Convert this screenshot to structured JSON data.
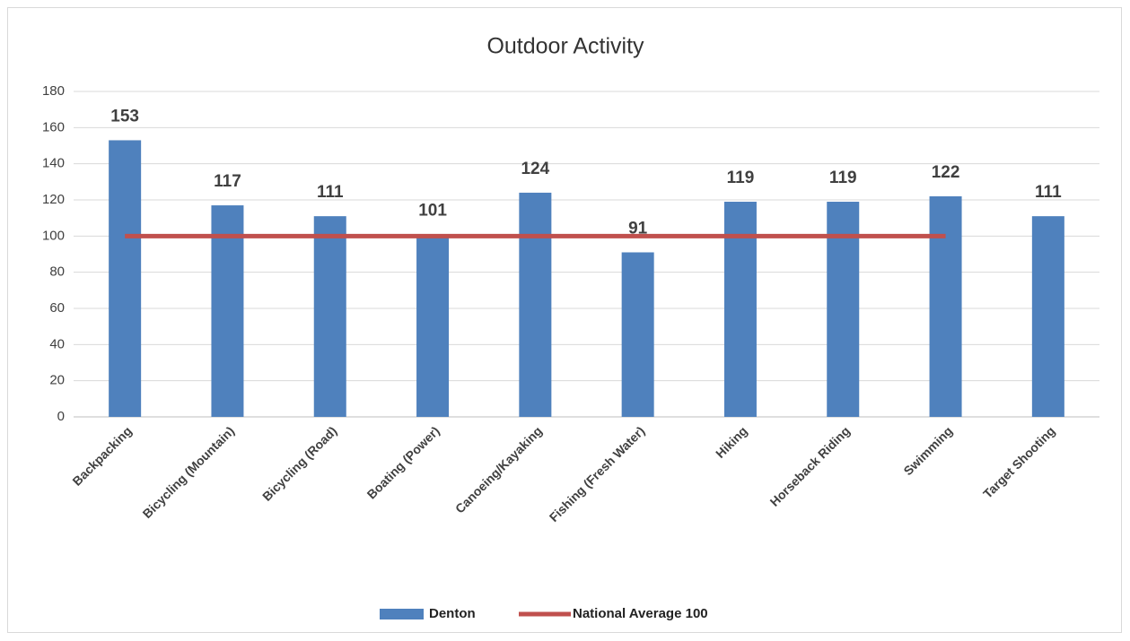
{
  "chart_data": {
    "type": "bar",
    "title": "Outdoor Activity",
    "categories": [
      "Backpacking",
      "Bicycling (Mountain)",
      "Bicycling (Road)",
      "Boating (Power)",
      "Canoeing/Kayaking",
      "Fishing (Fresh Water)",
      "Hiking",
      "Horseback Riding",
      "Swimming",
      "Target Shooting"
    ],
    "series": [
      {
        "name": "Denton",
        "type": "bar",
        "color": "#4f81bd",
        "values": [
          153,
          117,
          111,
          101,
          124,
          91,
          119,
          119,
          122,
          111
        ]
      },
      {
        "name": "National Average 100",
        "type": "line",
        "color": "#c0504d",
        "values": [
          100,
          100,
          100,
          100,
          100,
          100,
          100,
          100,
          100,
          null
        ]
      }
    ],
    "ylim": [
      0,
      180
    ],
    "yticks": [
      0,
      20,
      40,
      60,
      80,
      100,
      120,
      140,
      160,
      180
    ],
    "grid": true,
    "legend": "bottom"
  }
}
